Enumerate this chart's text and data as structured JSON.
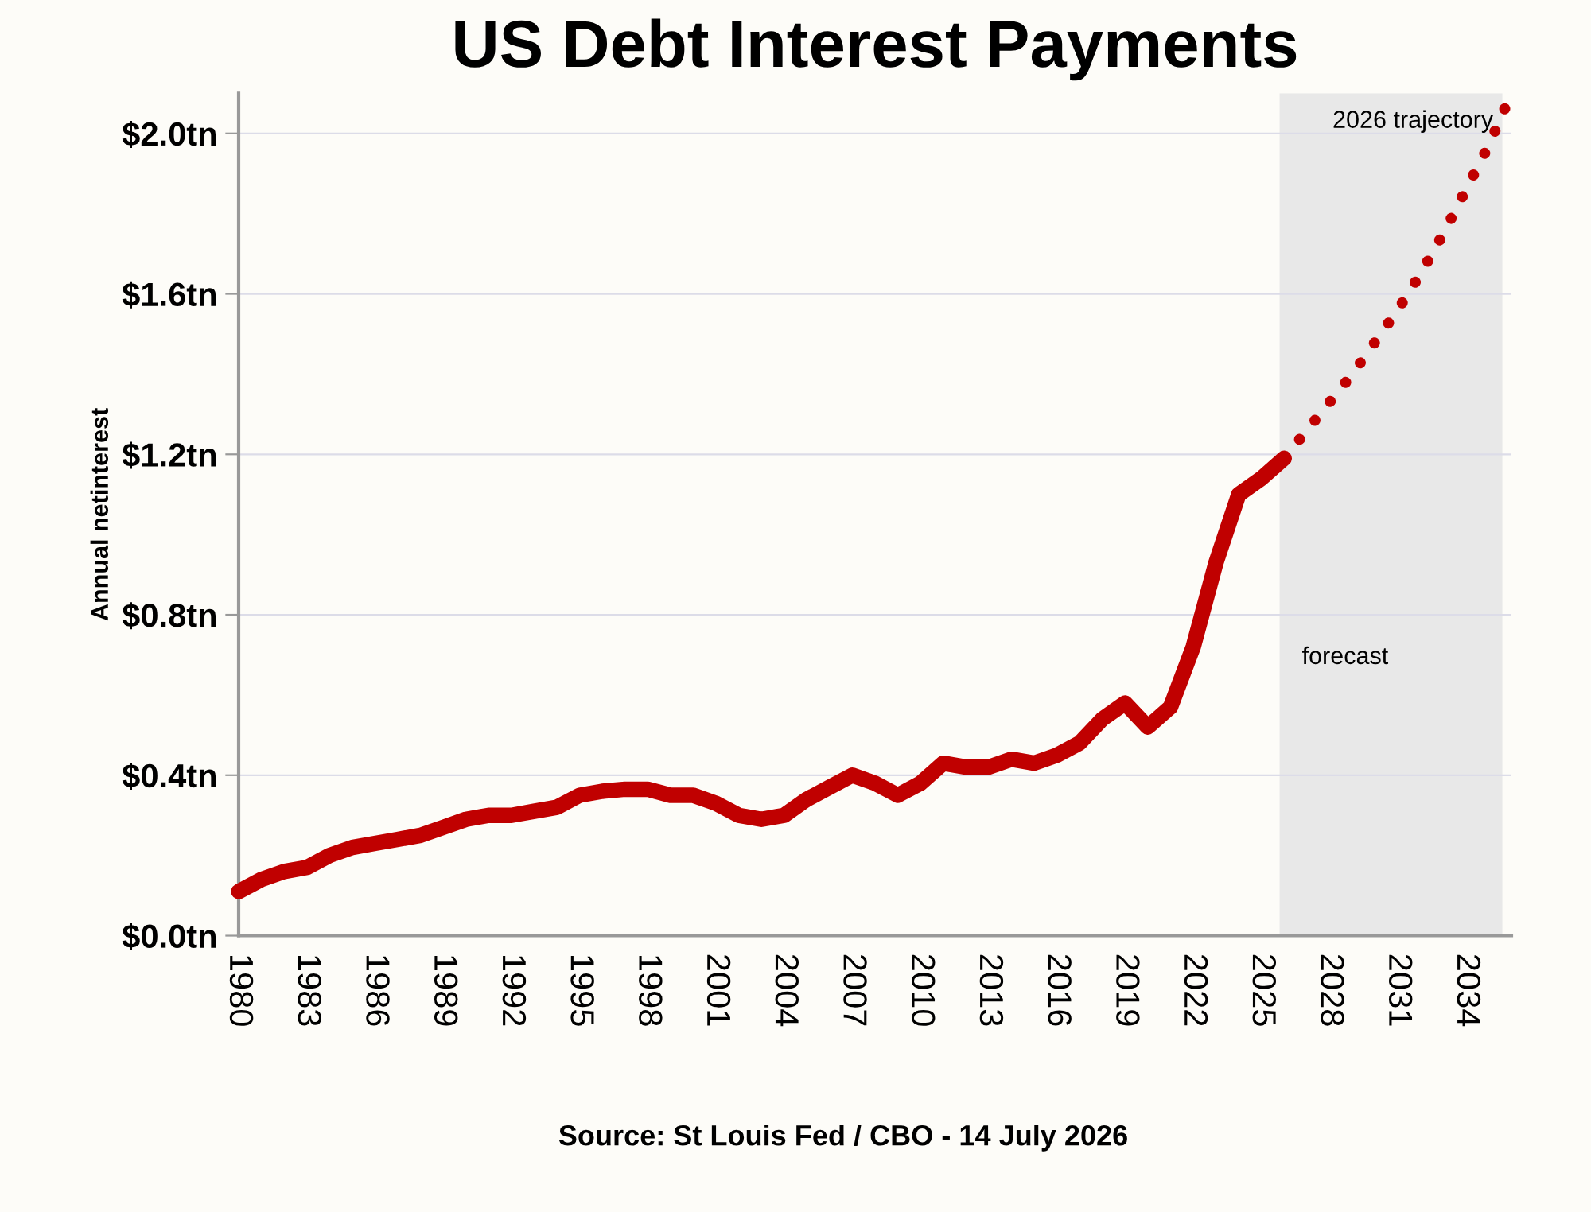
{
  "chart_data": {
    "type": "line",
    "title": "US Debt Interest Payments",
    "ylabel": "Annual netinterest",
    "annotations": [
      "Source: St Louis Fed / CBO - 14 July 2026"
    ],
    "series": [
      {
        "color": "#c00000",
        "line_style": "solid",
        "x": [
          1980,
          1981,
          1982,
          1983,
          1984,
          1985,
          1986,
          1987,
          1988,
          1989,
          1990,
          1991,
          1992,
          1993,
          1994,
          1995,
          1996,
          1997,
          1998,
          1999,
          2000,
          2001,
          2002,
          2003,
          2004,
          2005,
          2006,
          2007,
          2008,
          2009,
          2010,
          2011,
          2012,
          2013,
          2014,
          2015,
          2016,
          2017,
          2018,
          2019,
          2020,
          2021,
          2022,
          2023,
          2024,
          2025,
          2026
        ],
        "values": [
          0.11,
          0.14,
          0.16,
          0.17,
          0.2,
          0.22,
          0.23,
          0.24,
          0.25,
          0.27,
          0.29,
          0.3,
          0.3,
          0.31,
          0.32,
          0.35,
          0.36,
          0.365,
          0.365,
          0.35,
          0.35,
          0.33,
          0.3,
          0.29,
          0.3,
          0.34,
          0.37,
          0.4,
          0.38,
          0.35,
          0.38,
          0.43,
          0.42,
          0.42,
          0.44,
          0.43,
          0.45,
          0.48,
          0.54,
          0.58,
          0.52,
          0.57,
          0.72,
          0.93,
          1.1,
          1.14,
          1.19
        ]
      },
      {
        "name": "2026 trajectory",
        "color": "#c00000",
        "line_style": "dotted",
        "x": [
          2026,
          2027,
          2028,
          2029,
          2030,
          2031,
          2032,
          2033,
          2034,
          2035,
          2036
        ],
        "values": [
          1.19,
          1.26,
          1.33,
          1.4,
          1.48,
          1.56,
          1.65,
          1.75,
          1.86,
          1.97,
          2.1
        ]
      }
    ],
    "bands": [
      {
        "axis": "x",
        "from": 2025.8,
        "to": 2035.6,
        "label": "forecast",
        "color": "#e8e8e8"
      }
    ],
    "xlim": [
      1980,
      2036
    ],
    "xticks": [
      1980,
      1983,
      1986,
      1989,
      1992,
      1995,
      1998,
      2001,
      2004,
      2007,
      2010,
      2013,
      2016,
      2019,
      2022,
      2025,
      2028,
      2031,
      2034
    ],
    "ylim": [
      0,
      2.1
    ],
    "yticks": [
      {
        "value": 0,
        "label": "$0.0tn"
      },
      {
        "value": 0.4,
        "label": "$0.4tn"
      },
      {
        "value": 0.8,
        "label": "$0.8tn"
      },
      {
        "value": 1.2,
        "label": "$1.2tn"
      },
      {
        "value": 1.6,
        "label": "$1.6tn"
      },
      {
        "value": 2.0,
        "label": "$2.0tn"
      }
    ],
    "grid": "y",
    "legend": false,
    "marker": "none"
  }
}
